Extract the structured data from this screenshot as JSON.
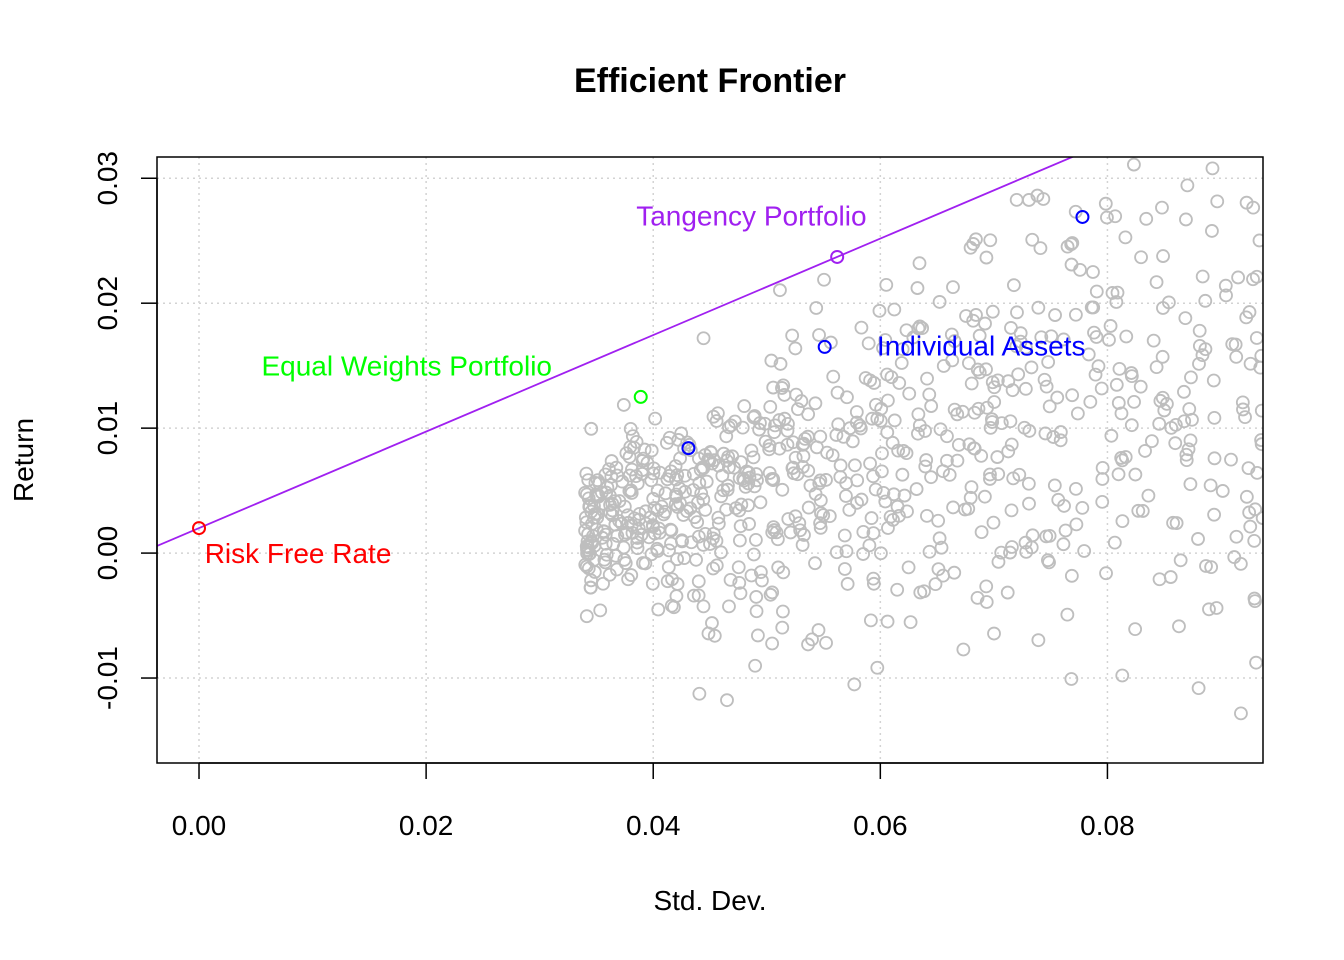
{
  "chart_data": {
    "type": "scatter",
    "title": "Efficient Frontier",
    "xlabel": "Std. Dev.",
    "ylabel": "Return",
    "xlim": [
      -0.0037,
      0.0937
    ],
    "ylim": [
      -0.0168,
      0.0317
    ],
    "x_ticks": [
      0.0,
      0.02,
      0.04,
      0.06,
      0.08
    ],
    "x_tick_labels": [
      "0.00",
      "0.02",
      "0.04",
      "0.06",
      "0.08"
    ],
    "y_ticks": [
      -0.01,
      0.0,
      0.01,
      0.02,
      0.03
    ],
    "y_tick_labels": [
      "-0.01",
      "0.00",
      "0.01",
      "0.02",
      "0.03"
    ],
    "grid": true,
    "colors": {
      "random_portfolios": "#bebebe",
      "capital_market_line": "#a020f0",
      "tangency": "#a020f0",
      "equal_weights": "#00ff00",
      "individual_assets": "#0000ff",
      "risk_free": "#ff0000"
    },
    "capital_market_line": {
      "intercept": 0.002,
      "slope": 0.3862
    },
    "highlighted_points": [
      {
        "key": "risk_free",
        "x": 0.0,
        "y": 0.002
      },
      {
        "key": "equal_weights",
        "x": 0.0389,
        "y": 0.0125
      },
      {
        "key": "tangency",
        "x": 0.0562,
        "y": 0.0237
      },
      {
        "key": "individual_assets",
        "x": 0.0431,
        "y": 0.0084
      },
      {
        "key": "individual_assets",
        "x": 0.0551,
        "y": 0.0165
      },
      {
        "key": "individual_assets",
        "x": 0.0778,
        "y": 0.0269
      }
    ],
    "annotations": [
      {
        "key": "risk_free",
        "text": "Risk Free Rate",
        "x": 0.0005,
        "y": 0.0
      },
      {
        "key": "equal_weights",
        "text": "Equal Weights Portfolio",
        "x": 0.0055,
        "y": 0.015
      },
      {
        "key": "tangency",
        "text": "Tangency Portfolio",
        "x": 0.0385,
        "y": 0.027
      },
      {
        "key": "individual_assets",
        "text": "Individual Assets",
        "x": 0.0597,
        "y": 0.0166
      }
    ],
    "random_portfolios": {
      "count": 800,
      "x_range": [
        0.034,
        0.0937
      ],
      "y_range": [
        -0.0132,
        0.0317
      ]
    }
  }
}
